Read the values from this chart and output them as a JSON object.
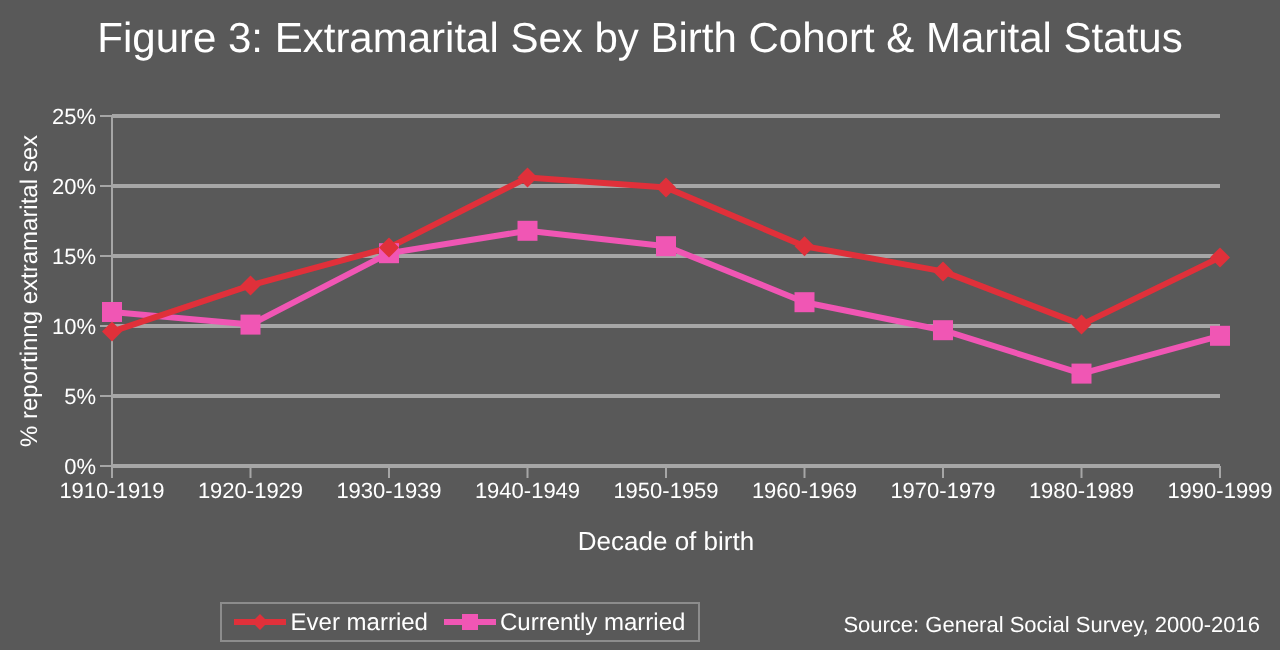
{
  "chart_data": {
    "type": "line",
    "title": "Figure 3: Extramarital Sex by Birth Cohort & Marital Status",
    "xlabel": "Decade of birth",
    "ylabel": "% reportinng extramarital sex",
    "categories": [
      "1910-1919",
      "1920-1929",
      "1930-1939",
      "1940-1949",
      "1950-1959",
      "1960-1969",
      "1970-1979",
      "1980-1989",
      "1990-1999"
    ],
    "series": [
      {
        "name": "Ever married",
        "color": "#e0303a",
        "marker": "diamond",
        "values": [
          9.6,
          12.9,
          15.6,
          20.6,
          19.9,
          15.7,
          13.9,
          10.1,
          14.9
        ]
      },
      {
        "name": "Currently married",
        "color": "#f056b4",
        "marker": "square",
        "values": [
          11.0,
          10.1,
          15.2,
          16.8,
          15.7,
          11.7,
          9.7,
          6.6,
          9.3
        ]
      }
    ],
    "ylim": [
      0,
      25
    ],
    "yticks": [
      {
        "value": 0,
        "label": "0%"
      },
      {
        "value": 5,
        "label": "5%"
      },
      {
        "value": 10,
        "label": "10%"
      },
      {
        "value": 15,
        "label": "15%"
      },
      {
        "value": 20,
        "label": "20%"
      },
      {
        "value": 25,
        "label": "25%"
      }
    ],
    "grid": "y",
    "legend": "bottom",
    "annotations": [
      "Source: General Social Survey, 2000-2016"
    ]
  }
}
